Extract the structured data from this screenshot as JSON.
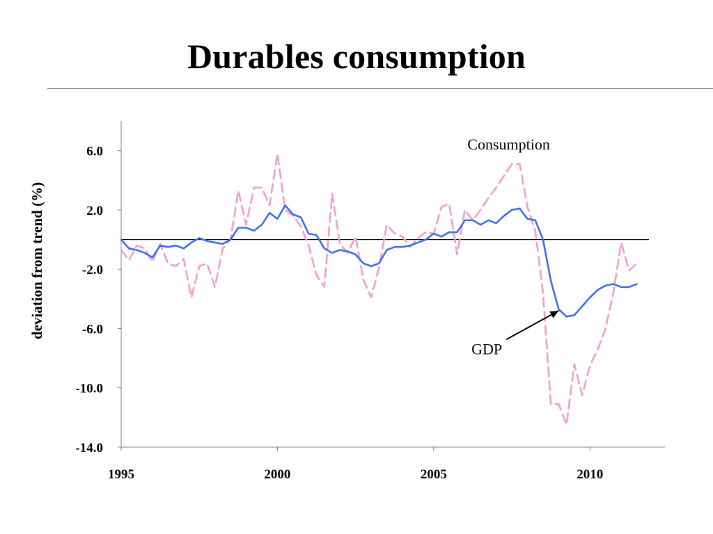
{
  "slide": {
    "title": "Durables consumption"
  },
  "chart_data": {
    "type": "line",
    "title": "",
    "ylabel": "deviation from trend (%)",
    "xlabel": "",
    "xlim": [
      1995,
      2012.4
    ],
    "ylim": [
      -14,
      8
    ],
    "x_ticks": [
      1995,
      2000,
      2005,
      2010
    ],
    "x_tick_labels": [
      "1995",
      "2000",
      "2005",
      "2010"
    ],
    "y_ticks": [
      6,
      2,
      -2,
      -6,
      -10,
      -14
    ],
    "y_tick_labels": [
      "6.0",
      "2.0",
      "-2.0",
      "-6.0",
      "-10.0",
      "-14.0"
    ],
    "zero_line": 0,
    "grid": false,
    "legend": "none (inline labels)",
    "colors": {
      "gdp": "#3c6de6",
      "consumption": "#f29bd0",
      "arrow": "#000000",
      "zero_line": "#000000",
      "axis": "#808080"
    },
    "annotations": [
      {
        "text": "Consumption",
        "x": 2007.4,
        "y": 6.4
      },
      {
        "text": "GDP",
        "x": 2006.7,
        "y": -7.4,
        "arrow_to": {
          "x": 2009.0,
          "y": -4.8
        }
      }
    ],
    "series": [
      {
        "name": "GDP",
        "style": "solid",
        "x": [
          1995.0,
          1995.25,
          1995.5,
          1995.75,
          1996.0,
          1996.25,
          1996.5,
          1996.75,
          1997.0,
          1997.25,
          1997.5,
          1997.75,
          1998.0,
          1998.25,
          1998.5,
          1998.75,
          1999.0,
          1999.25,
          1999.5,
          1999.75,
          2000.0,
          2000.25,
          2000.5,
          2000.75,
          2001.0,
          2001.25,
          2001.5,
          2001.75,
          2002.0,
          2002.25,
          2002.5,
          2002.75,
          2003.0,
          2003.25,
          2003.5,
          2003.75,
          2004.0,
          2004.25,
          2004.5,
          2004.75,
          2005.0,
          2005.25,
          2005.5,
          2005.75,
          2006.0,
          2006.25,
          2006.5,
          2006.75,
          2007.0,
          2007.25,
          2007.5,
          2007.75,
          2008.0,
          2008.25,
          2008.5,
          2008.75,
          2009.0,
          2009.25,
          2009.5,
          2009.75,
          2010.0,
          2010.25,
          2010.5,
          2010.75,
          2011.0,
          2011.25,
          2011.5
        ],
        "values": [
          0.0,
          -0.6,
          -0.7,
          -0.9,
          -1.2,
          -0.4,
          -0.5,
          -0.4,
          -0.6,
          -0.2,
          0.1,
          -0.1,
          -0.2,
          -0.3,
          0.0,
          0.8,
          0.8,
          0.6,
          1.0,
          1.8,
          1.4,
          2.3,
          1.7,
          1.5,
          0.4,
          0.3,
          -0.6,
          -0.9,
          -0.7,
          -0.8,
          -1.0,
          -1.6,
          -1.8,
          -1.6,
          -0.7,
          -0.5,
          -0.5,
          -0.4,
          -0.2,
          0.0,
          0.4,
          0.2,
          0.5,
          0.5,
          1.3,
          1.3,
          1.0,
          1.3,
          1.1,
          1.6,
          2.0,
          2.1,
          1.4,
          1.3,
          0.0,
          -2.8,
          -4.7,
          -5.2,
          -5.1,
          -4.5,
          -3.9,
          -3.4,
          -3.1,
          -3.0,
          -3.2,
          -3.2,
          -3.0
        ]
      },
      {
        "name": "Consumption",
        "style": "dashed",
        "x": [
          1995.0,
          1995.25,
          1995.5,
          1995.75,
          1996.0,
          1996.25,
          1996.5,
          1996.75,
          1997.0,
          1997.25,
          1997.5,
          1997.75,
          1998.0,
          1998.25,
          1998.5,
          1998.75,
          1999.0,
          1999.25,
          1999.5,
          1999.75,
          2000.0,
          2000.25,
          2000.5,
          2000.75,
          2001.0,
          2001.25,
          2001.5,
          2001.75,
          2002.0,
          2002.25,
          2002.5,
          2002.75,
          2003.0,
          2003.25,
          2003.5,
          2003.75,
          2004.0,
          2004.25,
          2004.5,
          2004.75,
          2005.0,
          2005.25,
          2005.5,
          2005.75,
          2006.0,
          2006.25,
          2006.5,
          2006.75,
          2007.0,
          2007.25,
          2007.5,
          2007.75,
          2008.0,
          2008.25,
          2008.5,
          2008.75,
          2009.0,
          2009.25,
          2009.5,
          2009.75,
          2010.0,
          2010.25,
          2010.5,
          2010.75,
          2011.0,
          2011.25,
          2011.5
        ],
        "values": [
          -0.7,
          -1.4,
          -0.4,
          -0.6,
          -1.5,
          -0.3,
          -1.6,
          -1.8,
          -1.3,
          -3.9,
          -1.8,
          -1.6,
          -3.2,
          -0.6,
          0.0,
          3.3,
          1.0,
          3.5,
          3.5,
          2.3,
          5.8,
          2.0,
          1.6,
          0.9,
          -0.4,
          -2.4,
          -3.2,
          3.1,
          -0.3,
          -0.9,
          0.2,
          -2.7,
          -3.9,
          -1.9,
          1.0,
          0.4,
          0.2,
          -0.5,
          0.1,
          0.5,
          0.4,
          2.2,
          2.4,
          -1.0,
          2.0,
          1.3,
          2.0,
          2.8,
          3.5,
          4.3,
          5.1,
          5.1,
          2.2,
          0.6,
          -3.6,
          -11.1,
          -11.1,
          -12.5,
          -8.4,
          -10.5,
          -8.5,
          -7.4,
          -6.0,
          -3.6,
          -0.2,
          -2.1,
          -1.6
        ]
      }
    ]
  }
}
